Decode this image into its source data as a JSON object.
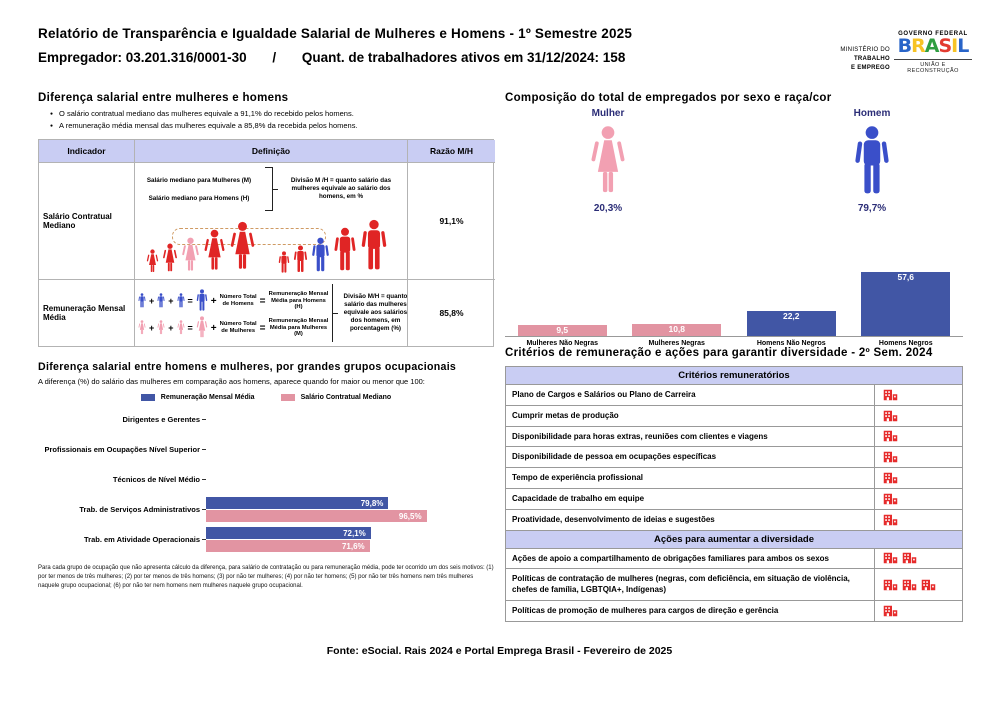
{
  "header": {
    "title": "Relatório de Transparência e Igualdade Salarial de Mulheres e Homens - 1º Semestre 2025",
    "employer": "Empregador: 03.201.316/0001-30",
    "separator": "/",
    "workers": "Quant. de trabalhadores ativos em 31/12/2024: 158",
    "ministry_logo": {
      "line1": "MINISTÉRIO DO",
      "line2": "TRABALHO",
      "line3": "E EMPREGO"
    },
    "gov_logo": {
      "top": "GOVERNO FEDERAL",
      "name": "BRASIL",
      "bottom": "UNIÃO E RECONSTRUÇÃO",
      "letter_colors": [
        "#2864c8",
        "#f7c325",
        "#2f9e41",
        "#e23b30",
        "#f7c325",
        "#2864c8"
      ]
    }
  },
  "salary_gap": {
    "title": "Diferença salarial entre mulheres e homens",
    "bullets": [
      "O salário contratual mediano das mulheres equivale a 91,1% do recebido pelos homens.",
      "A remuneração média mensal das mulheres equivale a 85,8% da recebida pelos homens."
    ],
    "table": {
      "headers": [
        "Indicador",
        "Definição",
        "Razão M/H"
      ],
      "row1": {
        "indicator": "Salário Contratual Mediano",
        "line_women": "Salário mediano para Mulheres (M)",
        "line_men": "Salário mediano para Homens (H)",
        "note": "Divisão M /H = quanto salário das mulheres equivale ao salário dos homens, em %",
        "ratio": "91,1%"
      },
      "row2": {
        "indicator": "Remuneração Mensal Média",
        "men_count_label": "Número Total de Homens",
        "men_result_label": "Remuneração Mensal Média para Homens (H)",
        "women_count_label": "Número Total de Mulheres",
        "women_result_label": "Remuneração Mensal Média para Mulheres (M)",
        "plus": "+",
        "equals": "=",
        "note": "Divisão M/H = quanto salário das mulheres equivale aos salários dos homens, em porcentagem (%)",
        "ratio": "85,8%"
      }
    }
  },
  "composition": {
    "title": "Composição do total de empregados por sexo e raça/cor",
    "female": {
      "label": "Mulher",
      "value": "20,3%"
    },
    "male": {
      "label": "Homem",
      "value": "79,7%"
    }
  },
  "occupational": {
    "title": "Diferença salarial entre homens e mulheres, por grandes grupos ocupacionais",
    "subtitle": "A diferença (%) do salário das mulheres em comparação aos homens, aparece quando for maior ou menor que 100:",
    "legend": [
      "Remuneração Mensal Média",
      "Salário Contratual Mediano"
    ],
    "footnote": "Para cada grupo de ocupação que não apresenta cálculo da diferença, para salário de contratação ou para remuneração média, pode ter ocorrido um dos seis motivos: (1) por ter menos de três mulheres; (2) por ter menos de três homens; (3) por não ter mulheres; (4) por não ter homens; (5) por não ter três homens nem três mulheres naquele grupo ocupacional; (6) por não ter nem homens nem mulheres naquele grupo ocupacional."
  },
  "criteria": {
    "title": "Critérios de remuneração e ações para garantir diversidade - 2º Sem. 2024",
    "section1": {
      "header": "Critérios remuneratórios",
      "rows": [
        {
          "label": "Plano de Cargos e Salários ou Plano de Carreira",
          "icons": 1
        },
        {
          "label": "Cumprir metas de produção",
          "icons": 1
        },
        {
          "label": "Disponibilidade para horas extras, reuniões com clientes e viagens",
          "icons": 1
        },
        {
          "label": "Disponibilidade de pessoa em ocupações específicas",
          "icons": 1
        },
        {
          "label": "Tempo de experiência profissional",
          "icons": 1
        },
        {
          "label": "Capacidade de trabalho em equipe",
          "icons": 1
        },
        {
          "label": "Proatividade, desenvolvimento de ideias e sugestões",
          "icons": 1
        }
      ]
    },
    "section2": {
      "header": "Ações para aumentar a diversidade",
      "rows": [
        {
          "label": "Ações de apoio a compartilhamento de obrigações familiares para ambos os sexos",
          "icons": 2
        },
        {
          "label": "Políticas de contratação de mulheres (negras, com deficiência, em situação de violência, chefes de família, LGBTQIA+, Indígenas)",
          "icons": 3
        },
        {
          "label": "Políticas de promoção de mulheres para cargos de direção e gerência",
          "icons": 1
        }
      ]
    }
  },
  "footer": {
    "source": "Fonte: eSocial. Rais 2024 e Portal Emprega Brasil - Fevereiro de 2025"
  },
  "colors": {
    "table_header_bg": "#c9cdf3",
    "female_pink_icon": "#f2a0b2",
    "female_pink_bar": "#e294a2",
    "male_blue_icon": "#3a4fc9",
    "male_blue_bar": "#4156a5",
    "figure_red": "#e02525",
    "company_icon_red": "#e62b2b",
    "navy_label": "#2b2d77",
    "dashed_box": "#cf9a63"
  },
  "chart_data": [
    {
      "type": "pictogram",
      "title": "Composição do total de empregados por sexo e raça/cor",
      "categories": [
        "Mulher",
        "Homem"
      ],
      "values": [
        20.3,
        79.7
      ],
      "value_labels": [
        "20,3%",
        "79,7%"
      ],
      "unit": "%"
    },
    {
      "type": "bar",
      "categories": [
        "Mulheres Não Negras",
        "Mulheres Negras",
        "Homens Não Negros",
        "Homens Negros"
      ],
      "values": [
        9.5,
        10.8,
        22.2,
        57.6
      ],
      "value_labels": [
        "9,5",
        "10,8",
        "22,2",
        "57,6"
      ],
      "bar_colors": [
        "pink",
        "pink",
        "blue",
        "blue"
      ],
      "ylim": [
        0,
        70
      ],
      "grid": false,
      "legend_position": "none",
      "unit": "%"
    },
    {
      "type": "bar",
      "orientation": "horizontal",
      "title": "Diferença salarial entre homens e mulheres, por grandes grupos ocupacionais",
      "categories": [
        "Dirigentes e Gerentes",
        "Profissionais em Ocupações Nível Superior",
        "Técnicos de Nível Médio",
        "Trab. de Serviços Administrativos",
        "Trab. em Atividade Operacionais"
      ],
      "series": [
        {
          "name": "Remuneração Mensal Média",
          "color": "blue",
          "values": [
            null,
            null,
            null,
            79.8,
            72.1
          ],
          "value_labels": [
            "",
            "",
            "",
            "79,8%",
            "72,1%"
          ]
        },
        {
          "name": "Salário Contratual Mediano",
          "color": "pink",
          "values": [
            null,
            null,
            null,
            96.5,
            71.6
          ],
          "value_labels": [
            "",
            "",
            "",
            "96,5%",
            "71,6%"
          ]
        }
      ],
      "xlim": [
        0,
        105
      ],
      "legend_position": "top"
    }
  ]
}
